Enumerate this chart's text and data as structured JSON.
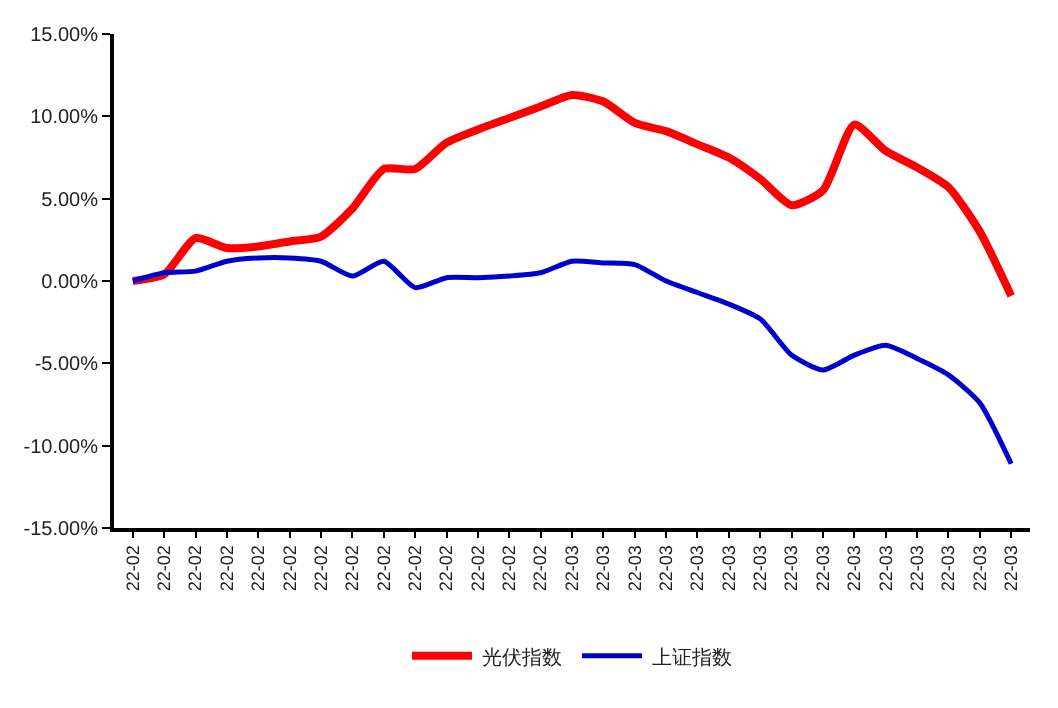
{
  "chart_data": {
    "type": "line",
    "categories": [
      "22-02",
      "22-02",
      "22-02",
      "22-02",
      "22-02",
      "22-02",
      "22-02",
      "22-02",
      "22-02",
      "22-02",
      "22-02",
      "22-02",
      "22-02",
      "22-02",
      "22-03",
      "22-03",
      "22-03",
      "22-03",
      "22-03",
      "22-03",
      "22-03",
      "22-03",
      "22-03",
      "22-03",
      "22-03",
      "22-03",
      "22-03",
      "22-03",
      "22-03"
    ],
    "series": [
      {
        "name": "光伏指数",
        "color": "#ff0000",
        "values": [
          0,
          0.4,
          2.6,
          2.0,
          2.1,
          2.4,
          2.7,
          4.4,
          6.8,
          6.8,
          8.4,
          9.2,
          9.9,
          10.6,
          11.3,
          10.9,
          9.6,
          9.1,
          8.3,
          7.5,
          6.2,
          4.6,
          5.5,
          9.5,
          7.9,
          6.9,
          5.7,
          3.0,
          -0.9
        ]
      },
      {
        "name": "上证指数",
        "color": "#0000cc",
        "values": [
          0,
          0.5,
          0.6,
          1.2,
          1.4,
          1.4,
          1.2,
          0.3,
          1.2,
          -0.4,
          0.2,
          0.2,
          0.3,
          0.5,
          1.2,
          1.1,
          1.0,
          0,
          -0.7,
          -1.4,
          -2.3,
          -4.5,
          -5.4,
          -4.5,
          -3.9,
          -4.7,
          -5.7,
          -7.4,
          -11.1
        ]
      }
    ],
    "ylim": [
      -15,
      15
    ],
    "yticks": [
      {
        "value": -15,
        "label": "-15.00%"
      },
      {
        "value": -10,
        "label": "-10.00%"
      },
      {
        "value": -5,
        "label": "-5.00%"
      },
      {
        "value": 0,
        "label": "0.00%"
      },
      {
        "value": 5,
        "label": "5.00%"
      },
      {
        "value": 10,
        "label": "10.00%"
      },
      {
        "value": 15,
        "label": "15.00%"
      }
    ],
    "legend": "bottom",
    "marker": "none",
    "line_style": "solid"
  }
}
